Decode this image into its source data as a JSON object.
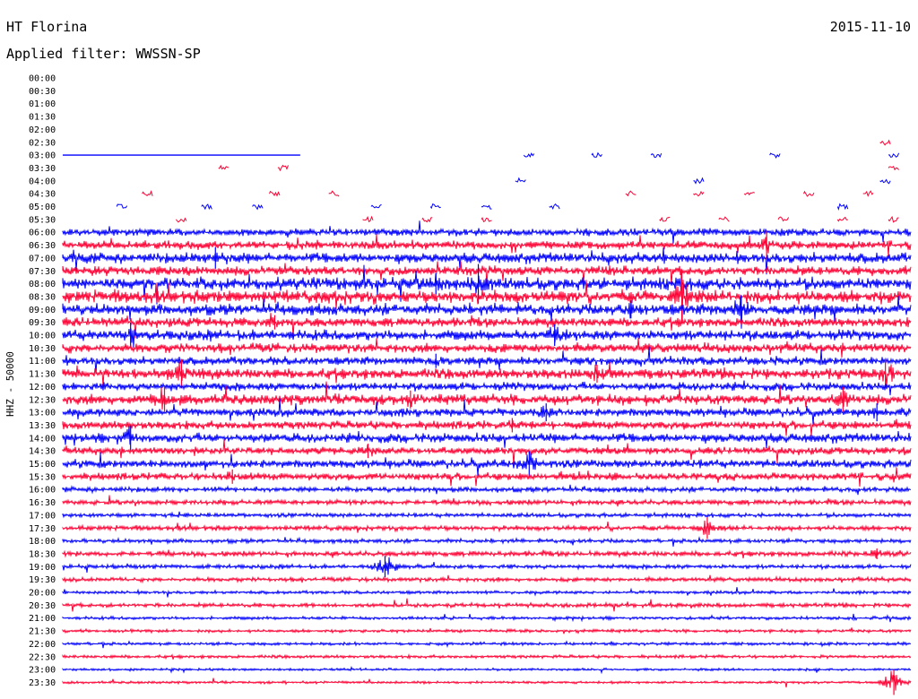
{
  "header": {
    "station": "HT Florina",
    "date": "2015-11-10",
    "filter": "Applied filter: WWSSN-SP"
  },
  "chart_data": {
    "type": "line",
    "chart_kind": "helicorder",
    "y_axis_label": "HHZ - 50000",
    "time_labels": [
      "00:00",
      "00:30",
      "01:00",
      "01:30",
      "02:00",
      "02:30",
      "03:00",
      "03:30",
      "04:00",
      "04:30",
      "05:00",
      "05:30",
      "06:00",
      "06:30",
      "07:00",
      "07:30",
      "08:00",
      "08:30",
      "09:00",
      "09:30",
      "10:00",
      "10:30",
      "11:00",
      "11:30",
      "12:00",
      "12:30",
      "13:00",
      "13:30",
      "14:00",
      "14:30",
      "15:00",
      "15:30",
      "16:00",
      "16:30",
      "17:00",
      "17:30",
      "18:00",
      "18:30",
      "19:00",
      "19:30",
      "20:00",
      "20:30",
      "21:00",
      "21:30",
      "22:00",
      "22:30",
      "23:00",
      "23:30"
    ],
    "trace_colors": [
      "#0000ff",
      "#ff0033"
    ],
    "continuous_from": "06:00",
    "noise_levels": [
      0,
      0,
      0,
      0,
      0,
      0,
      0.3,
      0.2,
      0.2,
      0.2,
      0.3,
      0.3,
      3.5,
      4.0,
      5.0,
      4.5,
      6.0,
      6.5,
      5.5,
      4.5,
      5.0,
      4.5,
      4.0,
      5.0,
      4.0,
      5.0,
      4.0,
      4.0,
      4.5,
      3.5,
      4.0,
      3.5,
      2.5,
      2.5,
      2.0,
      2.5,
      2.0,
      2.5,
      2.0,
      2.0,
      1.5,
      2.0,
      1.5,
      1.5,
      1.5,
      1.5,
      1.2,
      1.2
    ],
    "events": [
      {
        "row": "06:30",
        "pos": 0.83,
        "amp": 16
      },
      {
        "row": "07:00",
        "pos": 0.18,
        "amp": 12
      },
      {
        "row": "08:00",
        "pos": 0.49,
        "amp": 22
      },
      {
        "row": "08:00",
        "pos": 0.44,
        "amp": 12
      },
      {
        "row": "08:30",
        "pos": 0.73,
        "amp": 30
      },
      {
        "row": "09:00",
        "pos": 0.8,
        "amp": 16
      },
      {
        "row": "09:00",
        "pos": 0.67,
        "amp": 10
      },
      {
        "row": "09:30",
        "pos": 0.25,
        "amp": 8
      },
      {
        "row": "10:00",
        "pos": 0.08,
        "amp": 14
      },
      {
        "row": "10:00",
        "pos": 0.58,
        "amp": 12
      },
      {
        "row": "11:00",
        "pos": 0.44,
        "amp": 8
      },
      {
        "row": "11:30",
        "pos": 0.14,
        "amp": 16
      },
      {
        "row": "11:30",
        "pos": 0.63,
        "amp": 10
      },
      {
        "row": "11:30",
        "pos": 0.97,
        "amp": 16
      },
      {
        "row": "12:30",
        "pos": 0.12,
        "amp": 14
      },
      {
        "row": "12:30",
        "pos": 0.41,
        "amp": 10
      },
      {
        "row": "12:30",
        "pos": 0.92,
        "amp": 14
      },
      {
        "row": "13:00",
        "pos": 0.57,
        "amp": 10
      },
      {
        "row": "13:00",
        "pos": 0.96,
        "amp": 10
      },
      {
        "row": "13:30",
        "pos": 0.53,
        "amp": 8
      },
      {
        "row": "14:00",
        "pos": 0.08,
        "amp": 14
      },
      {
        "row": "14:30",
        "pos": 0.36,
        "amp": 8
      },
      {
        "row": "15:00",
        "pos": 0.55,
        "amp": 14
      },
      {
        "row": "15:30",
        "pos": 0.2,
        "amp": 8
      },
      {
        "row": "17:30",
        "pos": 0.76,
        "amp": 12
      },
      {
        "row": "18:30",
        "pos": 0.96,
        "amp": 6
      },
      {
        "row": "19:00",
        "pos": 0.38,
        "amp": 12
      },
      {
        "row": "23:30",
        "pos": 0.98,
        "amp": 14
      }
    ],
    "gap_ticks": [
      {
        "row": "02:30",
        "pos": 0.97
      },
      {
        "row": "03:00",
        "pos": 0.55
      },
      {
        "row": "03:00",
        "pos": 0.63
      },
      {
        "row": "03:00",
        "pos": 0.7
      },
      {
        "row": "03:00",
        "pos": 0.84
      },
      {
        "row": "03:00",
        "pos": 0.98
      },
      {
        "row": "03:30",
        "pos": 0.19
      },
      {
        "row": "03:30",
        "pos": 0.26
      },
      {
        "row": "03:30",
        "pos": 0.98
      },
      {
        "row": "04:00",
        "pos": 0.54
      },
      {
        "row": "04:00",
        "pos": 0.75
      },
      {
        "row": "04:00",
        "pos": 0.97
      },
      {
        "row": "04:30",
        "pos": 0.1
      },
      {
        "row": "04:30",
        "pos": 0.25
      },
      {
        "row": "04:30",
        "pos": 0.32
      },
      {
        "row": "04:30",
        "pos": 0.67
      },
      {
        "row": "04:30",
        "pos": 0.75
      },
      {
        "row": "04:30",
        "pos": 0.81
      },
      {
        "row": "04:30",
        "pos": 0.88
      },
      {
        "row": "04:30",
        "pos": 0.95
      },
      {
        "row": "05:00",
        "pos": 0.07
      },
      {
        "row": "05:00",
        "pos": 0.17
      },
      {
        "row": "05:00",
        "pos": 0.23
      },
      {
        "row": "05:00",
        "pos": 0.37
      },
      {
        "row": "05:00",
        "pos": 0.44
      },
      {
        "row": "05:00",
        "pos": 0.5
      },
      {
        "row": "05:00",
        "pos": 0.58
      },
      {
        "row": "05:00",
        "pos": 0.92
      },
      {
        "row": "05:30",
        "pos": 0.14
      },
      {
        "row": "05:30",
        "pos": 0.36
      },
      {
        "row": "05:30",
        "pos": 0.43
      },
      {
        "row": "05:30",
        "pos": 0.5
      },
      {
        "row": "05:30",
        "pos": 0.71
      },
      {
        "row": "05:30",
        "pos": 0.78
      },
      {
        "row": "05:30",
        "pos": 0.85
      },
      {
        "row": "05:30",
        "pos": 0.92
      },
      {
        "row": "05:30",
        "pos": 0.98
      }
    ],
    "partial_segments": [
      {
        "row": "03:00",
        "from": 0.0,
        "to": 0.28
      }
    ]
  }
}
